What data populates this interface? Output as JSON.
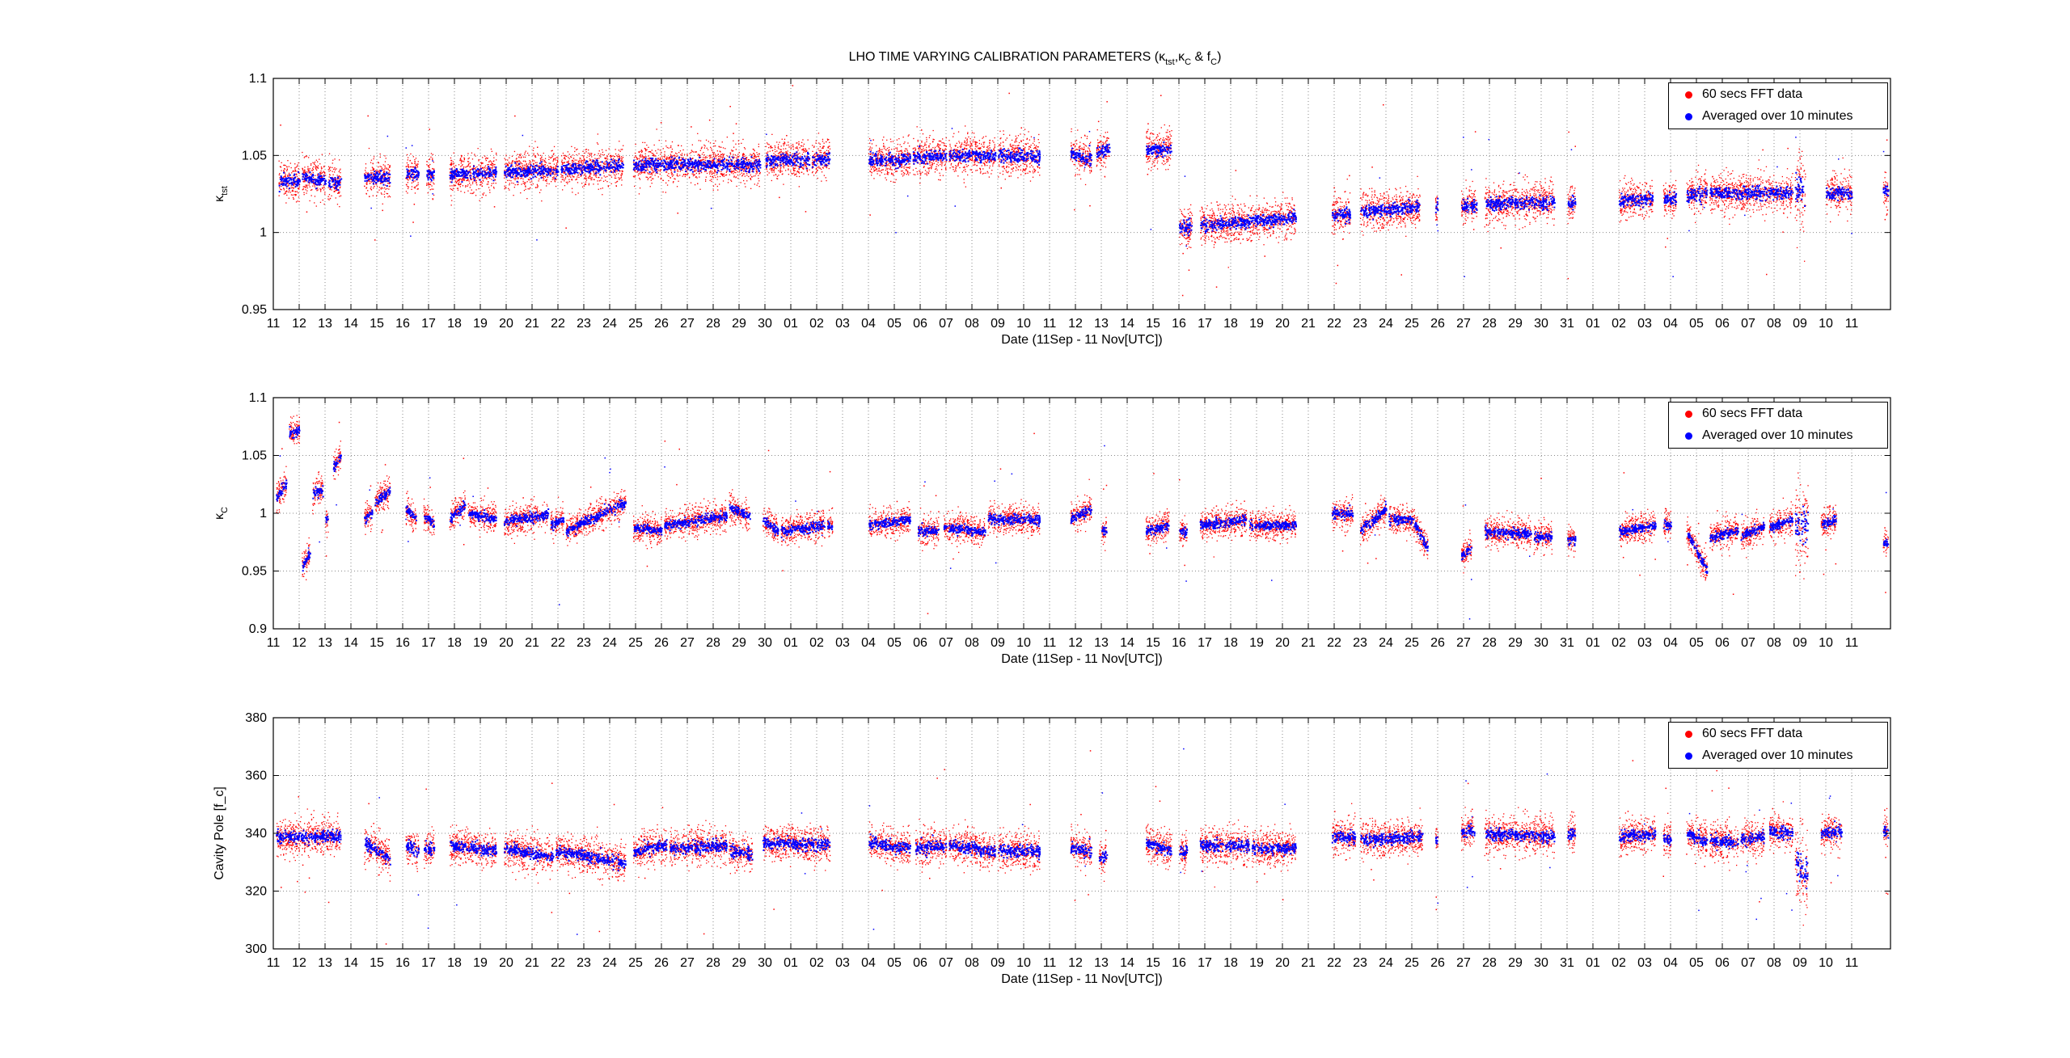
{
  "figure": {
    "title": "LHO TIME VARYING CALIBRATION PARAMETERS (κtst,κC & fC)",
    "title_parts": {
      "prefix": "LHO TIME VARYING CALIBRATION PARAMETERS (",
      "k1": "κ",
      "k1_sub": "tst",
      "sep1": ",",
      "k2": "κ",
      "k2_sub": "C",
      "sep2": " & f",
      "f_sub": "C",
      "suffix": ")"
    },
    "colors": {
      "raw": "#ff0000",
      "avg": "#0000ff",
      "axis": "#000000",
      "grid": "#8a8a8a"
    }
  },
  "chart_data": [
    {
      "type": "scatter",
      "ylabel": "κtst",
      "ylabel_main": "κ",
      "ylabel_sub": "tst",
      "xlabel": "Date  (11Sep - 11 Nov[UTC])",
      "ylim": [
        0.95,
        1.1
      ],
      "yticks": [
        "0.95",
        "1",
        "1.05",
        "1.1"
      ],
      "ytick_values": [
        0.95,
        1.0,
        1.05,
        1.1
      ],
      "grid": true,
      "legend_position": "top-right",
      "legend": [
        "60 secs FFT data",
        "Averaged over 10 minutes"
      ],
      "series": [
        {
          "name": "60 secs FFT data",
          "color": "#ff0000",
          "spread": 0.012
        },
        {
          "name": "Averaged over 10 minutes",
          "color": "#0000ff",
          "spread": 0.004
        }
      ],
      "segments": [
        {
          "x0": 11.2,
          "x1": 12.0,
          "y0": 1.034,
          "y1": 1.034
        },
        {
          "x0": 12.1,
          "x1": 13.0,
          "y0": 1.036,
          "y1": 1.034
        },
        {
          "x0": 13.1,
          "x1": 13.6,
          "y0": 1.033,
          "y1": 1.033
        },
        {
          "x0": 14.5,
          "x1": 15.5,
          "y0": 1.036,
          "y1": 1.036
        },
        {
          "x0": 16.1,
          "x1": 16.6,
          "y0": 1.038,
          "y1": 1.038
        },
        {
          "x0": 16.9,
          "x1": 17.2,
          "y0": 1.038,
          "y1": 1.038
        },
        {
          "x0": 17.8,
          "x1": 19.6,
          "y0": 1.038,
          "y1": 1.039
        },
        {
          "x0": 19.9,
          "x1": 22.0,
          "y0": 1.04,
          "y1": 1.041
        },
        {
          "x0": 22.1,
          "x1": 24.5,
          "y0": 1.041,
          "y1": 1.044
        },
        {
          "x0": 24.9,
          "x1": 26.3,
          "y0": 1.044,
          "y1": 1.045
        },
        {
          "x0": 26.3,
          "x1": 29.8,
          "y0": 1.045,
          "y1": 1.044
        },
        {
          "x0": 30.0,
          "x1": 31.7,
          "y0": 1.047,
          "y1": 1.048
        },
        {
          "x0": 31.8,
          "x1": 32.5,
          "y0": 1.048,
          "y1": 1.048
        },
        {
          "x0": 34.0,
          "x1": 35.6,
          "y0": 1.047,
          "y1": 1.048
        },
        {
          "x0": 35.7,
          "x1": 37.0,
          "y0": 1.049,
          "y1": 1.05
        },
        {
          "x0": 37.1,
          "x1": 38.9,
          "y0": 1.05,
          "y1": 1.051
        },
        {
          "x0": 39.0,
          "x1": 40.6,
          "y0": 1.05,
          "y1": 1.05
        },
        {
          "x0": 41.8,
          "x1": 42.6,
          "y0": 1.051,
          "y1": 1.048
        },
        {
          "x0": 42.8,
          "x1": 43.3,
          "y0": 1.052,
          "y1": 1.054
        },
        {
          "x0": 44.7,
          "x1": 45.7,
          "y0": 1.054,
          "y1": 1.055
        },
        {
          "x0": 46.0,
          "x1": 46.5,
          "y0": 1.004,
          "y1": 1.004
        },
        {
          "x0": 46.8,
          "x1": 50.5,
          "y0": 1.005,
          "y1": 1.01
        },
        {
          "x0": 51.9,
          "x1": 52.6,
          "y0": 1.012,
          "y1": 1.012
        },
        {
          "x0": 53.0,
          "x1": 55.3,
          "y0": 1.014,
          "y1": 1.017
        },
        {
          "x0": 55.9,
          "x1": 56.0,
          "y0": 1.018,
          "y1": 1.018
        },
        {
          "x0": 56.9,
          "x1": 57.5,
          "y0": 1.018,
          "y1": 1.018
        },
        {
          "x0": 57.8,
          "x1": 60.5,
          "y0": 1.019,
          "y1": 1.02
        },
        {
          "x0": 61.0,
          "x1": 61.3,
          "y0": 1.02,
          "y1": 1.02
        },
        {
          "x0": 63.0,
          "x1": 64.3,
          "y0": 1.021,
          "y1": 1.022
        },
        {
          "x0": 64.7,
          "x1": 65.2,
          "y0": 1.022,
          "y1": 1.022
        },
        {
          "x0": 65.6,
          "x1": 66.4,
          "y0": 1.024,
          "y1": 1.026
        },
        {
          "x0": 66.5,
          "x1": 69.7,
          "y0": 1.026,
          "y1": 1.026
        },
        {
          "x0": 69.8,
          "x1": 70.2,
          "y0": 1.028,
          "y1": 1.028
        },
        {
          "x0": 71.0,
          "x1": 72.0,
          "y0": 1.026,
          "y1": 1.026
        },
        {
          "x0": 73.2,
          "x1": 73.4,
          "y0": 1.027,
          "y1": 1.027
        }
      ],
      "noisy": [
        [
          69.7,
          70.4,
          0.03
        ]
      ],
      "outlier_count": 140
    },
    {
      "type": "scatter",
      "ylabel": "κC",
      "ylabel_main": "κ",
      "ylabel_sub": "C",
      "xlabel": "Date  (11Sep - 11 Nov[UTC])",
      "ylim": [
        0.9,
        1.1
      ],
      "yticks": [
        "0.9",
        "0.95",
        "1",
        "1.05",
        "1.1"
      ],
      "ytick_values": [
        0.9,
        0.95,
        1.0,
        1.05,
        1.1
      ],
      "grid": true,
      "legend_position": "top-right",
      "legend": [
        "60 secs FFT data",
        "Averaged over 10 minutes"
      ],
      "series": [
        {
          "name": "60 secs FFT data",
          "color": "#ff0000",
          "spread": 0.012
        },
        {
          "name": "Averaged over 10 minutes",
          "color": "#0000ff",
          "spread": 0.004
        }
      ],
      "segments": [
        {
          "x0": 11.1,
          "x1": 11.5,
          "y0": 1.015,
          "y1": 1.025
        },
        {
          "x0": 11.6,
          "x1": 12.0,
          "y0": 1.07,
          "y1": 1.072
        },
        {
          "x0": 12.1,
          "x1": 12.4,
          "y0": 0.955,
          "y1": 0.965
        },
        {
          "x0": 12.5,
          "x1": 12.9,
          "y0": 1.018,
          "y1": 1.02
        },
        {
          "x0": 13.0,
          "x1": 13.1,
          "y0": 0.995,
          "y1": 0.995
        },
        {
          "x0": 13.3,
          "x1": 13.6,
          "y0": 1.04,
          "y1": 1.05
        },
        {
          "x0": 14.5,
          "x1": 14.8,
          "y0": 0.995,
          "y1": 1.0
        },
        {
          "x0": 14.9,
          "x1": 15.5,
          "y0": 1.01,
          "y1": 1.02
        },
        {
          "x0": 16.1,
          "x1": 16.5,
          "y0": 1.005,
          "y1": 0.995
        },
        {
          "x0": 16.8,
          "x1": 17.2,
          "y0": 1.0,
          "y1": 0.99
        },
        {
          "x0": 17.8,
          "x1": 18.4,
          "y0": 0.995,
          "y1": 1.008
        },
        {
          "x0": 18.5,
          "x1": 19.6,
          "y0": 1.0,
          "y1": 0.995
        },
        {
          "x0": 19.9,
          "x1": 21.6,
          "y0": 0.993,
          "y1": 1.0
        },
        {
          "x0": 21.7,
          "x1": 22.2,
          "y0": 0.99,
          "y1": 0.995
        },
        {
          "x0": 22.3,
          "x1": 24.6,
          "y0": 0.985,
          "y1": 1.01
        },
        {
          "x0": 24.9,
          "x1": 26.0,
          "y0": 0.988,
          "y1": 0.985
        },
        {
          "x0": 26.1,
          "x1": 28.5,
          "y0": 0.99,
          "y1": 0.998
        },
        {
          "x0": 28.6,
          "x1": 29.4,
          "y0": 1.005,
          "y1": 0.998
        },
        {
          "x0": 29.9,
          "x1": 30.5,
          "y0": 0.995,
          "y1": 0.985
        },
        {
          "x0": 30.6,
          "x1": 32.3,
          "y0": 0.985,
          "y1": 0.99
        },
        {
          "x0": 32.4,
          "x1": 32.6,
          "y0": 0.99,
          "y1": 0.99
        },
        {
          "x0": 34.0,
          "x1": 35.6,
          "y0": 0.99,
          "y1": 0.995
        },
        {
          "x0": 35.9,
          "x1": 36.7,
          "y0": 0.985,
          "y1": 0.985
        },
        {
          "x0": 36.9,
          "x1": 38.5,
          "y0": 0.988,
          "y1": 0.985
        },
        {
          "x0": 38.6,
          "x1": 40.6,
          "y0": 0.995,
          "y1": 0.995
        },
        {
          "x0": 41.8,
          "x1": 42.6,
          "y0": 0.995,
          "y1": 1.005
        },
        {
          "x0": 43.0,
          "x1": 43.2,
          "y0": 0.985,
          "y1": 0.985
        },
        {
          "x0": 44.7,
          "x1": 45.6,
          "y0": 0.985,
          "y1": 0.99
        },
        {
          "x0": 46.0,
          "x1": 46.3,
          "y0": 0.985,
          "y1": 0.985
        },
        {
          "x0": 46.8,
          "x1": 48.6,
          "y0": 0.99,
          "y1": 0.995
        },
        {
          "x0": 48.7,
          "x1": 50.5,
          "y0": 0.99,
          "y1": 0.99
        },
        {
          "x0": 51.9,
          "x1": 52.7,
          "y0": 1.0,
          "y1": 1.0
        },
        {
          "x0": 53.0,
          "x1": 54.0,
          "y0": 0.985,
          "y1": 1.005
        },
        {
          "x0": 54.1,
          "x1": 55.0,
          "y0": 0.995,
          "y1": 0.995
        },
        {
          "x0": 55.0,
          "x1": 55.6,
          "y0": 0.995,
          "y1": 0.97
        },
        {
          "x0": 56.9,
          "x1": 57.3,
          "y0": 0.965,
          "y1": 0.97
        },
        {
          "x0": 57.8,
          "x1": 59.6,
          "y0": 0.985,
          "y1": 0.982
        },
        {
          "x0": 59.7,
          "x1": 60.4,
          "y0": 0.98,
          "y1": 0.98
        },
        {
          "x0": 61.0,
          "x1": 61.3,
          "y0": 0.977,
          "y1": 0.977
        },
        {
          "x0": 63.0,
          "x1": 64.4,
          "y0": 0.985,
          "y1": 0.99
        },
        {
          "x0": 64.7,
          "x1": 65.0,
          "y0": 0.99,
          "y1": 0.99
        },
        {
          "x0": 65.6,
          "x1": 66.4,
          "y0": 0.985,
          "y1": 0.95
        },
        {
          "x0": 66.5,
          "x1": 67.6,
          "y0": 0.98,
          "y1": 0.985
        },
        {
          "x0": 67.7,
          "x1": 68.6,
          "y0": 0.98,
          "y1": 0.99
        },
        {
          "x0": 68.8,
          "x1": 69.7,
          "y0": 0.988,
          "y1": 0.995
        },
        {
          "x0": 69.8,
          "x1": 70.3,
          "y0": 0.99,
          "y1": 0.99
        },
        {
          "x0": 70.8,
          "x1": 71.4,
          "y0": 0.99,
          "y1": 0.995
        },
        {
          "x0": 73.2,
          "x1": 73.4,
          "y0": 0.975,
          "y1": 0.975
        }
      ],
      "noisy": [
        [
          69.7,
          70.4,
          0.04
        ]
      ],
      "outlier_count": 140
    },
    {
      "type": "scatter",
      "ylabel": "Cavity Pole [f_c]",
      "ylabel_main": "Cavity Pole [f_c]",
      "ylabel_sub": "",
      "xlabel": "Date  (11Sep - 11 Nov[UTC])",
      "ylim": [
        300,
        380
      ],
      "yticks": [
        "300",
        "320",
        "340",
        "360",
        "380"
      ],
      "ytick_values": [
        300,
        320,
        340,
        360,
        380
      ],
      "grid": true,
      "legend_position": "top-right",
      "legend": [
        "60 secs FFT data",
        "Averaged over 10 minutes"
      ],
      "series": [
        {
          "name": "60 secs FFT data",
          "color": "#ff0000",
          "spread": 6
        },
        {
          "name": "Averaged over 10 minutes",
          "color": "#0000ff",
          "spread": 2
        }
      ],
      "segments": [
        {
          "x0": 11.1,
          "x1": 13.6,
          "y0": 339,
          "y1": 339
        },
        {
          "x0": 14.5,
          "x1": 15.5,
          "y0": 337,
          "y1": 331
        },
        {
          "x0": 16.1,
          "x1": 16.6,
          "y0": 336,
          "y1": 334
        },
        {
          "x0": 16.8,
          "x1": 17.2,
          "y0": 335,
          "y1": 335
        },
        {
          "x0": 17.8,
          "x1": 19.6,
          "y0": 336,
          "y1": 334
        },
        {
          "x0": 19.9,
          "x1": 21.8,
          "y0": 335,
          "y1": 332
        },
        {
          "x0": 21.9,
          "x1": 24.6,
          "y0": 334,
          "y1": 330
        },
        {
          "x0": 24.9,
          "x1": 26.2,
          "y0": 334,
          "y1": 336
        },
        {
          "x0": 26.3,
          "x1": 28.5,
          "y0": 335,
          "y1": 336
        },
        {
          "x0": 28.6,
          "x1": 29.5,
          "y0": 334,
          "y1": 333
        },
        {
          "x0": 29.9,
          "x1": 32.5,
          "y0": 337,
          "y1": 336
        },
        {
          "x0": 34.0,
          "x1": 35.6,
          "y0": 337,
          "y1": 335
        },
        {
          "x0": 35.8,
          "x1": 37.0,
          "y0": 335,
          "y1": 336
        },
        {
          "x0": 37.1,
          "x1": 38.9,
          "y0": 336,
          "y1": 334
        },
        {
          "x0": 39.0,
          "x1": 40.6,
          "y0": 334,
          "y1": 334
        },
        {
          "x0": 41.8,
          "x1": 42.6,
          "y0": 335,
          "y1": 334
        },
        {
          "x0": 42.9,
          "x1": 43.2,
          "y0": 332,
          "y1": 332
        },
        {
          "x0": 44.7,
          "x1": 45.7,
          "y0": 337,
          "y1": 334
        },
        {
          "x0": 46.0,
          "x1": 46.3,
          "y0": 334,
          "y1": 334
        },
        {
          "x0": 46.8,
          "x1": 48.7,
          "y0": 336,
          "y1": 336
        },
        {
          "x0": 48.8,
          "x1": 50.5,
          "y0": 335,
          "y1": 335
        },
        {
          "x0": 51.9,
          "x1": 52.8,
          "y0": 339,
          "y1": 339
        },
        {
          "x0": 53.0,
          "x1": 55.4,
          "y0": 338,
          "y1": 339
        },
        {
          "x0": 55.9,
          "x1": 56.0,
          "y0": 338,
          "y1": 338
        },
        {
          "x0": 56.9,
          "x1": 57.4,
          "y0": 341,
          "y1": 341
        },
        {
          "x0": 57.8,
          "x1": 60.5,
          "y0": 340,
          "y1": 339
        },
        {
          "x0": 61.0,
          "x1": 61.3,
          "y0": 340,
          "y1": 340
        },
        {
          "x0": 63.0,
          "x1": 64.4,
          "y0": 339,
          "y1": 340
        },
        {
          "x0": 64.7,
          "x1": 65.0,
          "y0": 338,
          "y1": 338
        },
        {
          "x0": 65.6,
          "x1": 66.4,
          "y0": 340,
          "y1": 337
        },
        {
          "x0": 66.5,
          "x1": 67.6,
          "y0": 338,
          "y1": 337
        },
        {
          "x0": 67.7,
          "x1": 68.6,
          "y0": 338,
          "y1": 339
        },
        {
          "x0": 68.8,
          "x1": 69.7,
          "y0": 341,
          "y1": 340
        },
        {
          "x0": 69.8,
          "x1": 70.3,
          "y0": 330,
          "y1": 325
        },
        {
          "x0": 70.8,
          "x1": 71.6,
          "y0": 340,
          "y1": 341
        },
        {
          "x0": 73.2,
          "x1": 73.4,
          "y0": 341,
          "y1": 341
        }
      ],
      "noisy": [
        [
          69.7,
          70.4,
          15
        ]
      ],
      "outlier_count": 140
    }
  ],
  "xaxis": {
    "xlim": [
      11,
      73.5
    ],
    "tick_labels": [
      "11",
      "12",
      "13",
      "14",
      "15",
      "16",
      "17",
      "18",
      "19",
      "20",
      "21",
      "22",
      "23",
      "24",
      "25",
      "26",
      "27",
      "28",
      "29",
      "30",
      "01",
      "02",
      "03",
      "04",
      "05",
      "06",
      "07",
      "08",
      "09",
      "10",
      "11",
      "12",
      "13",
      "14",
      "15",
      "16",
      "17",
      "18",
      "19",
      "20",
      "21",
      "22",
      "23",
      "24",
      "25",
      "26",
      "27",
      "28",
      "29",
      "30",
      "31",
      "01",
      "02",
      "03",
      "04",
      "05",
      "06",
      "07",
      "08",
      "09",
      "10",
      "11"
    ],
    "tick_values": [
      11,
      12,
      13,
      14,
      15,
      16,
      17,
      18,
      19,
      20,
      21,
      22,
      23,
      24,
      25,
      26,
      27,
      28,
      29,
      30,
      31,
      32,
      33,
      34,
      35,
      36,
      37,
      38,
      39,
      40,
      41,
      42,
      43,
      44,
      45,
      46,
      47,
      48,
      49,
      50,
      51,
      52,
      53,
      54,
      55,
      56,
      57,
      58,
      59,
      60,
      61,
      62,
      63,
      64,
      65,
      66,
      67,
      68,
      69,
      70,
      71,
      72
    ]
  }
}
